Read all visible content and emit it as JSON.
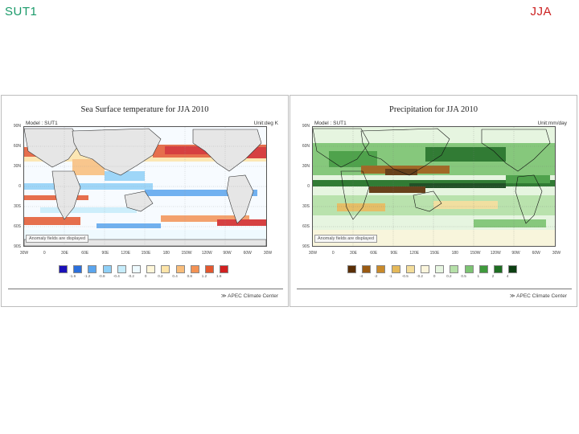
{
  "slide": {
    "title_left": "SUT1",
    "title_right": "JJA"
  },
  "panels": [
    {
      "id": "sst",
      "title": "Sea Surface temperature for JJA 2010",
      "model": "Model : SUT1",
      "unit": "Unit:deg K",
      "note": "Anomaly fields are displayed",
      "credit": "≫ APEC Climate Center",
      "lat_labels": [
        "90N",
        "60N",
        "30N",
        "0",
        "30S",
        "60S",
        "90S"
      ],
      "lon_labels": [
        "30W",
        "0",
        "30E",
        "60E",
        "90E",
        "120E",
        "150E",
        "180",
        "150W",
        "120W",
        "90W",
        "60W",
        "30W"
      ],
      "legend_colors": [
        "#1a10b8",
        "#2b6fdc",
        "#5aa5ee",
        "#8fd0f7",
        "#c6ecfb",
        "#eefaff",
        "#fff6d8",
        "#fde4a8",
        "#f9bd7a",
        "#f39254",
        "#e4572e",
        "#d12020"
      ],
      "legend_ticks": [
        "-1.6",
        "-1.2",
        "-0.8",
        "-0.4",
        "-0.2",
        "0",
        "0.2",
        "0.4",
        "0.8",
        "1.2",
        "1.6"
      ]
    },
    {
      "id": "prec",
      "title": "Precipitation for JJA 2010",
      "model": "Model : SUT1",
      "unit": "Unit:mm/day",
      "note": "Anomaly fields are displayed",
      "credit": "≫ APEC Climate Center",
      "lat_labels": [
        "90N",
        "60N",
        "30N",
        "0",
        "30S",
        "60S",
        "90S"
      ],
      "lon_labels": [
        "30W",
        "0",
        "30E",
        "60E",
        "90E",
        "120E",
        "150E",
        "180",
        "150W",
        "120W",
        "90W",
        "60W",
        "30W"
      ],
      "legend_colors": [
        "#5a2e06",
        "#9a5a12",
        "#c98a2a",
        "#e5b95a",
        "#f3dd9a",
        "#fbf5dc",
        "#e6f5e0",
        "#b5e0a8",
        "#7cc472",
        "#3f9a3c",
        "#1e6e22",
        "#0c3f12"
      ],
      "legend_ticks": [
        "-4",
        "-2",
        "-1",
        "-0.5",
        "-0.2",
        "0",
        "0.2",
        "0.5",
        "1",
        "2",
        "4"
      ]
    }
  ]
}
